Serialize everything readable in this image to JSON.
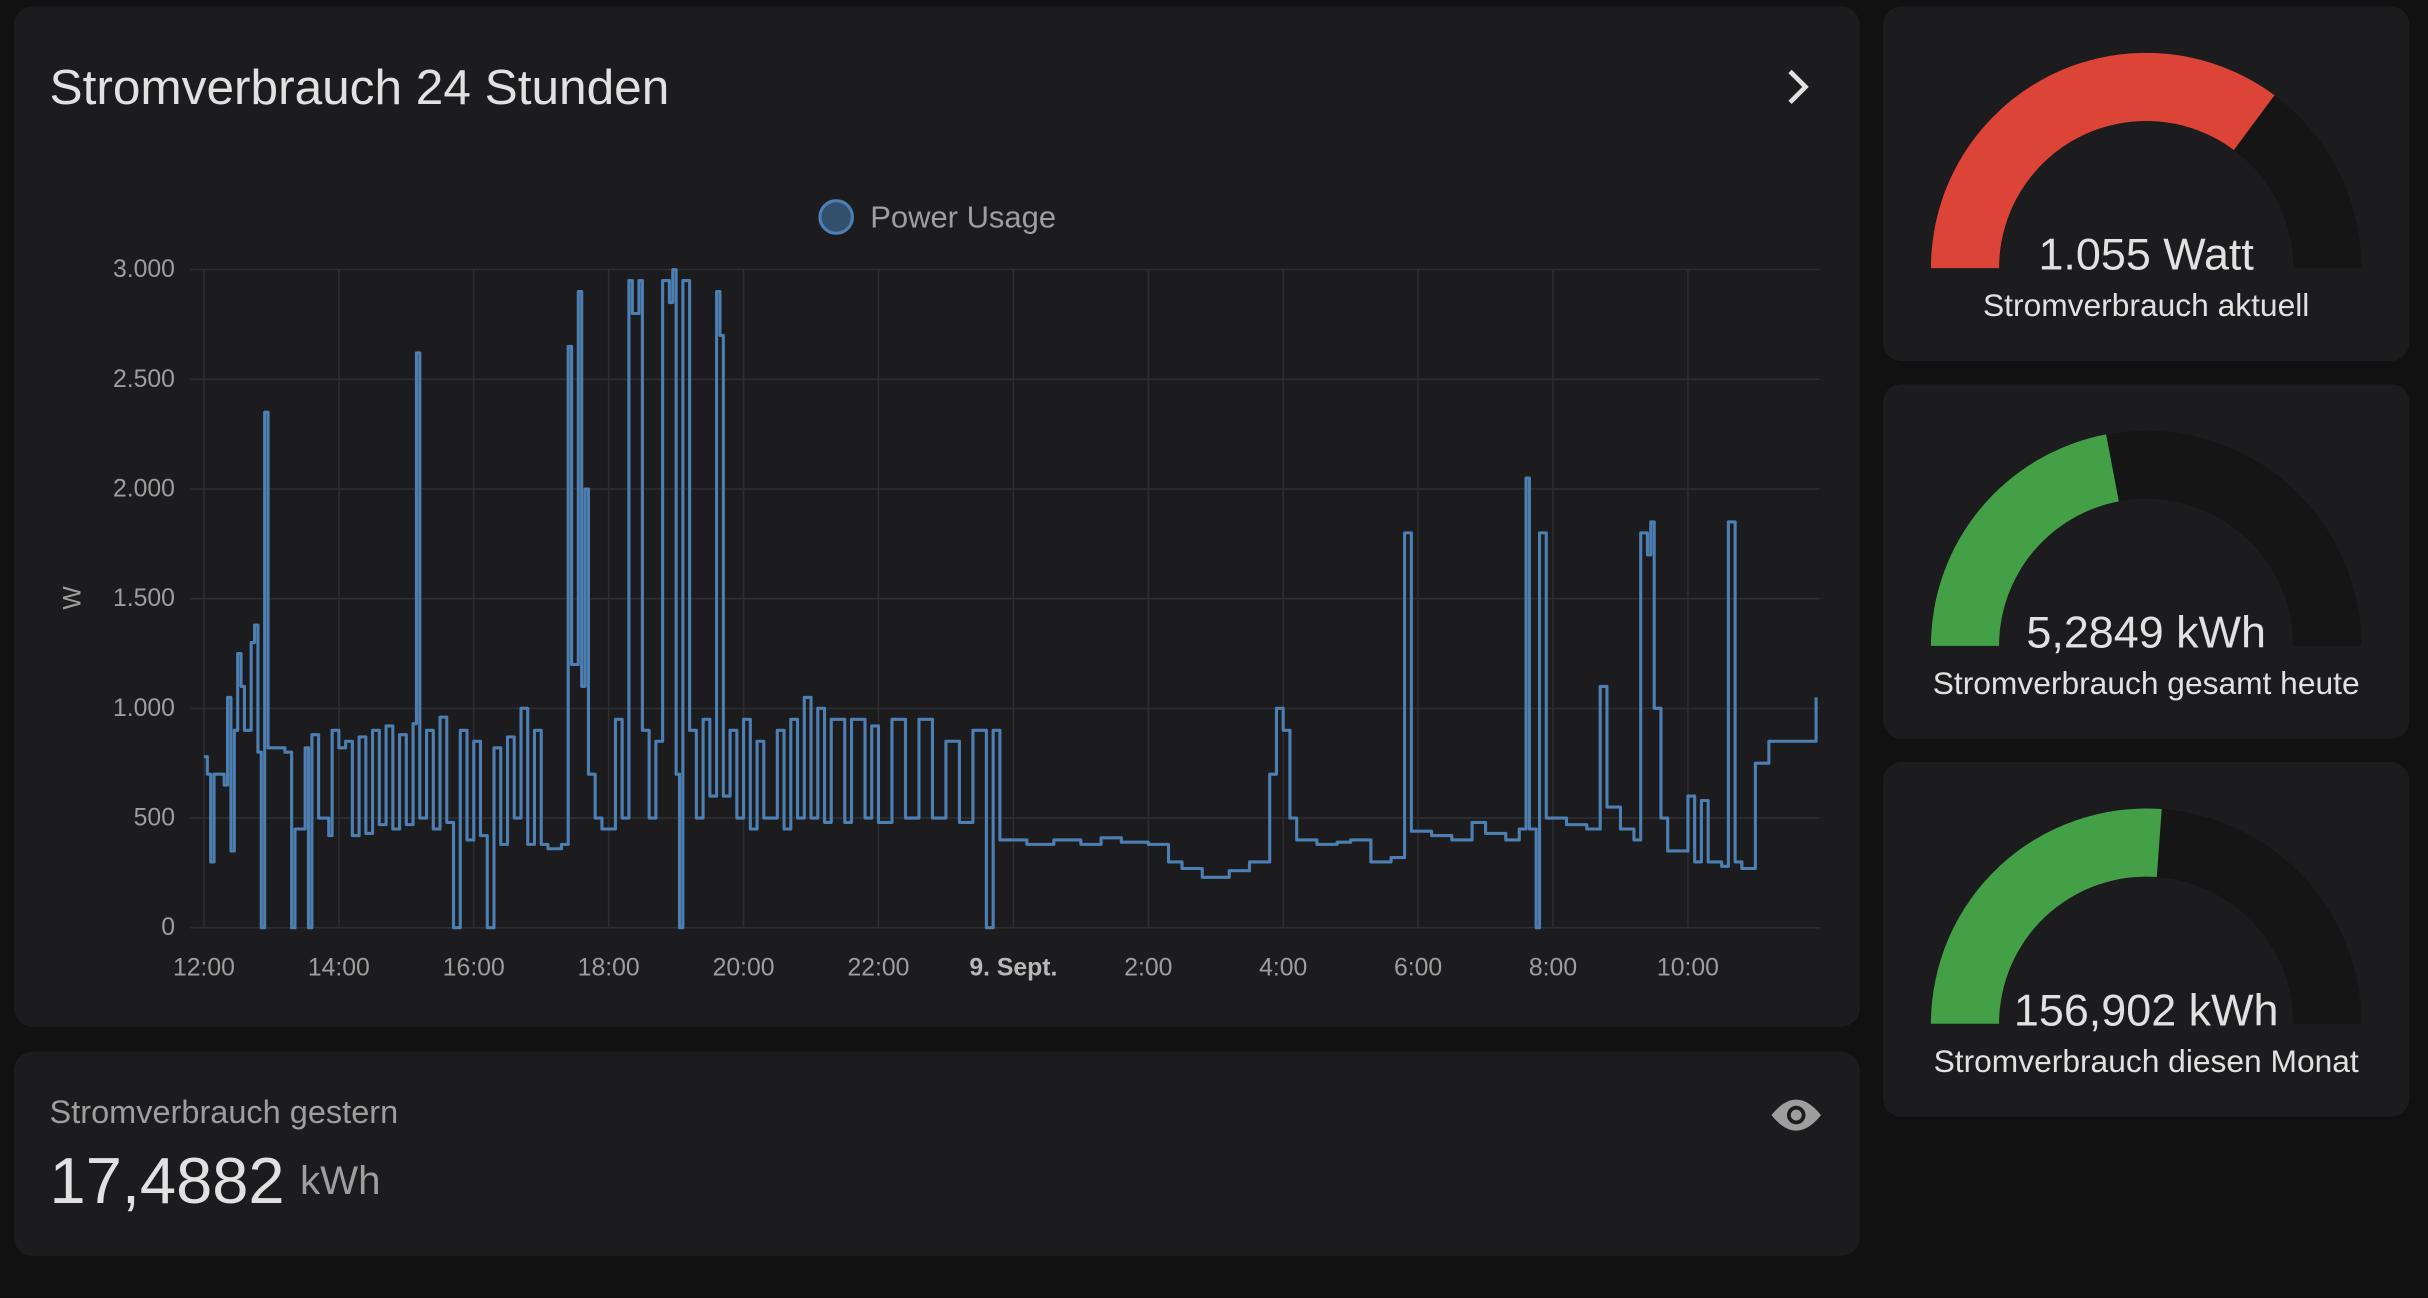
{
  "chart_data": {
    "type": "line",
    "title": "Stromverbrauch 24 Stunden",
    "ylabel": "W",
    "x": [
      0,
      0.05,
      0.1,
      0.15,
      0.3,
      0.35,
      0.4,
      0.45,
      0.5,
      0.55,
      0.6,
      0.7,
      0.75,
      0.8,
      0.85,
      0.9,
      0.95,
      1.2,
      1.3,
      1.35,
      1.5,
      1.55,
      1.6,
      1.7,
      1.85,
      1.9,
      2.0,
      2.1,
      2.2,
      2.3,
      2.4,
      2.5,
      2.6,
      2.7,
      2.8,
      2.9,
      3.0,
      3.1,
      3.15,
      3.2,
      3.3,
      3.4,
      3.5,
      3.6,
      3.7,
      3.8,
      3.9,
      4.0,
      4.1,
      4.2,
      4.3,
      4.4,
      4.5,
      4.6,
      4.7,
      4.8,
      4.9,
      5.0,
      5.1,
      5.3,
      5.4,
      5.45,
      5.55,
      5.6,
      5.65,
      5.7,
      5.8,
      5.9,
      6.0,
      6.1,
      6.2,
      6.3,
      6.35,
      6.45,
      6.5,
      6.6,
      6.7,
      6.8,
      6.9,
      6.95,
      7.0,
      7.05,
      7.1,
      7.2,
      7.3,
      7.4,
      7.5,
      7.6,
      7.65,
      7.7,
      7.8,
      7.9,
      8.0,
      8.1,
      8.2,
      8.3,
      8.5,
      8.6,
      8.7,
      8.8,
      8.9,
      9.0,
      9.1,
      9.2,
      9.3,
      9.5,
      9.6,
      9.8,
      9.9,
      10.0,
      10.2,
      10.4,
      10.6,
      10.8,
      11.0,
      11.2,
      11.4,
      11.6,
      11.7,
      11.8,
      12.2,
      12.6,
      13.0,
      13.3,
      13.6,
      14.0,
      14.3,
      14.5,
      14.8,
      15.2,
      15.5,
      15.8,
      15.9,
      16.0,
      16.1,
      16.2,
      16.5,
      16.8,
      17.0,
      17.3,
      17.6,
      17.8,
      17.9,
      18.2,
      18.5,
      18.8,
      19.0,
      19.3,
      19.5,
      19.6,
      19.65,
      19.75,
      19.8,
      19.9,
      20.2,
      20.5,
      20.7,
      20.8,
      21.0,
      21.2,
      21.3,
      21.4,
      21.45,
      21.5,
      21.6,
      21.7,
      22.0,
      22.1,
      22.2,
      22.3,
      22.5,
      22.6,
      22.7,
      22.8,
      23.0,
      23.2,
      23.9
    ],
    "series": [
      {
        "name": "Power Usage",
        "color": "#4d7fb3",
        "values": [
          780,
          700,
          300,
          700,
          650,
          1050,
          350,
          900,
          1250,
          1100,
          900,
          1300,
          1380,
          800,
          0,
          2350,
          820,
          800,
          0,
          450,
          820,
          0,
          880,
          500,
          420,
          900,
          820,
          850,
          420,
          870,
          430,
          900,
          470,
          920,
          450,
          880,
          470,
          930,
          2620,
          500,
          900,
          450,
          960,
          480,
          0,
          900,
          400,
          850,
          420,
          0,
          820,
          380,
          870,
          500,
          1000,
          380,
          900,
          380,
          360,
          380,
          2650,
          1200,
          2900,
          1100,
          2000,
          700,
          500,
          450,
          450,
          950,
          500,
          2950,
          2800,
          2950,
          900,
          500,
          850,
          2950,
          2850,
          3000,
          700,
          0,
          2950,
          900,
          500,
          950,
          600,
          2900,
          2700,
          600,
          900,
          500,
          950,
          450,
          850,
          500,
          900,
          450,
          950,
          500,
          1050,
          500,
          1000,
          480,
          950,
          480,
          950,
          500,
          920,
          480,
          950,
          500,
          950,
          500,
          850,
          480,
          900,
          0,
          900,
          400,
          380,
          400,
          380,
          410,
          390,
          380,
          300,
          270,
          230,
          260,
          300,
          700,
          1000,
          900,
          500,
          400,
          380,
          390,
          400,
          300,
          320,
          1800,
          440,
          420,
          400,
          480,
          430,
          400,
          450,
          2050,
          450,
          0,
          1800,
          500,
          470,
          450,
          1100,
          550,
          450,
          400,
          1800,
          1700,
          1850,
          1000,
          500,
          350,
          600,
          300,
          580,
          300,
          280,
          1850,
          300,
          270,
          750,
          850,
          1050
        ]
      }
    ],
    "xlim": [
      -0.2,
      23.95
    ],
    "ylim": [
      0,
      3000
    ],
    "xticks": [
      {
        "value": 0,
        "label": "12:00"
      },
      {
        "value": 2,
        "label": "14:00"
      },
      {
        "value": 4,
        "label": "16:00"
      },
      {
        "value": 6,
        "label": "18:00"
      },
      {
        "value": 8,
        "label": "20:00"
      },
      {
        "value": 10,
        "label": "22:00"
      },
      {
        "value": 12,
        "label": "9. Sept."
      },
      {
        "value": 14,
        "label": "2:00"
      },
      {
        "value": 16,
        "label": "4:00"
      },
      {
        "value": 18,
        "label": "6:00"
      },
      {
        "value": 20,
        "label": "8:00"
      },
      {
        "value": 22,
        "label": "10:00"
      }
    ],
    "yticks": [
      0,
      {
        "value": 500,
        "label": "500"
      },
      {
        "value": 1000,
        "label": "1.000"
      },
      {
        "value": 1500,
        "label": "1.500"
      },
      {
        "value": 2000,
        "label": "2.000"
      },
      {
        "value": 2500,
        "label": "2.500"
      },
      {
        "value": 3000,
        "label": "3.000"
      }
    ],
    "grid": true,
    "step": true,
    "legend": "top"
  },
  "yesterday": {
    "label": "Stromverbrauch gestern",
    "value": 17.4882,
    "value_label": "17,4882",
    "unit": "kWh"
  },
  "gauges": [
    {
      "name": "Stromverbrauch aktuell",
      "value": 1055,
      "value_label": "1.055 Watt",
      "min": 0,
      "max": 1500,
      "color": "#db4437"
    },
    {
      "name": "Stromverbrauch gesamt heute",
      "value": 5.2849,
      "value_label": "5,2849 kWh",
      "min": 0,
      "max": 12,
      "color": "#43a047"
    },
    {
      "name": "Stromverbrauch diesen Monat",
      "value": 156.902,
      "value_label": "156,902 kWh",
      "min": 0,
      "max": 300,
      "color": "#43a047"
    }
  ]
}
